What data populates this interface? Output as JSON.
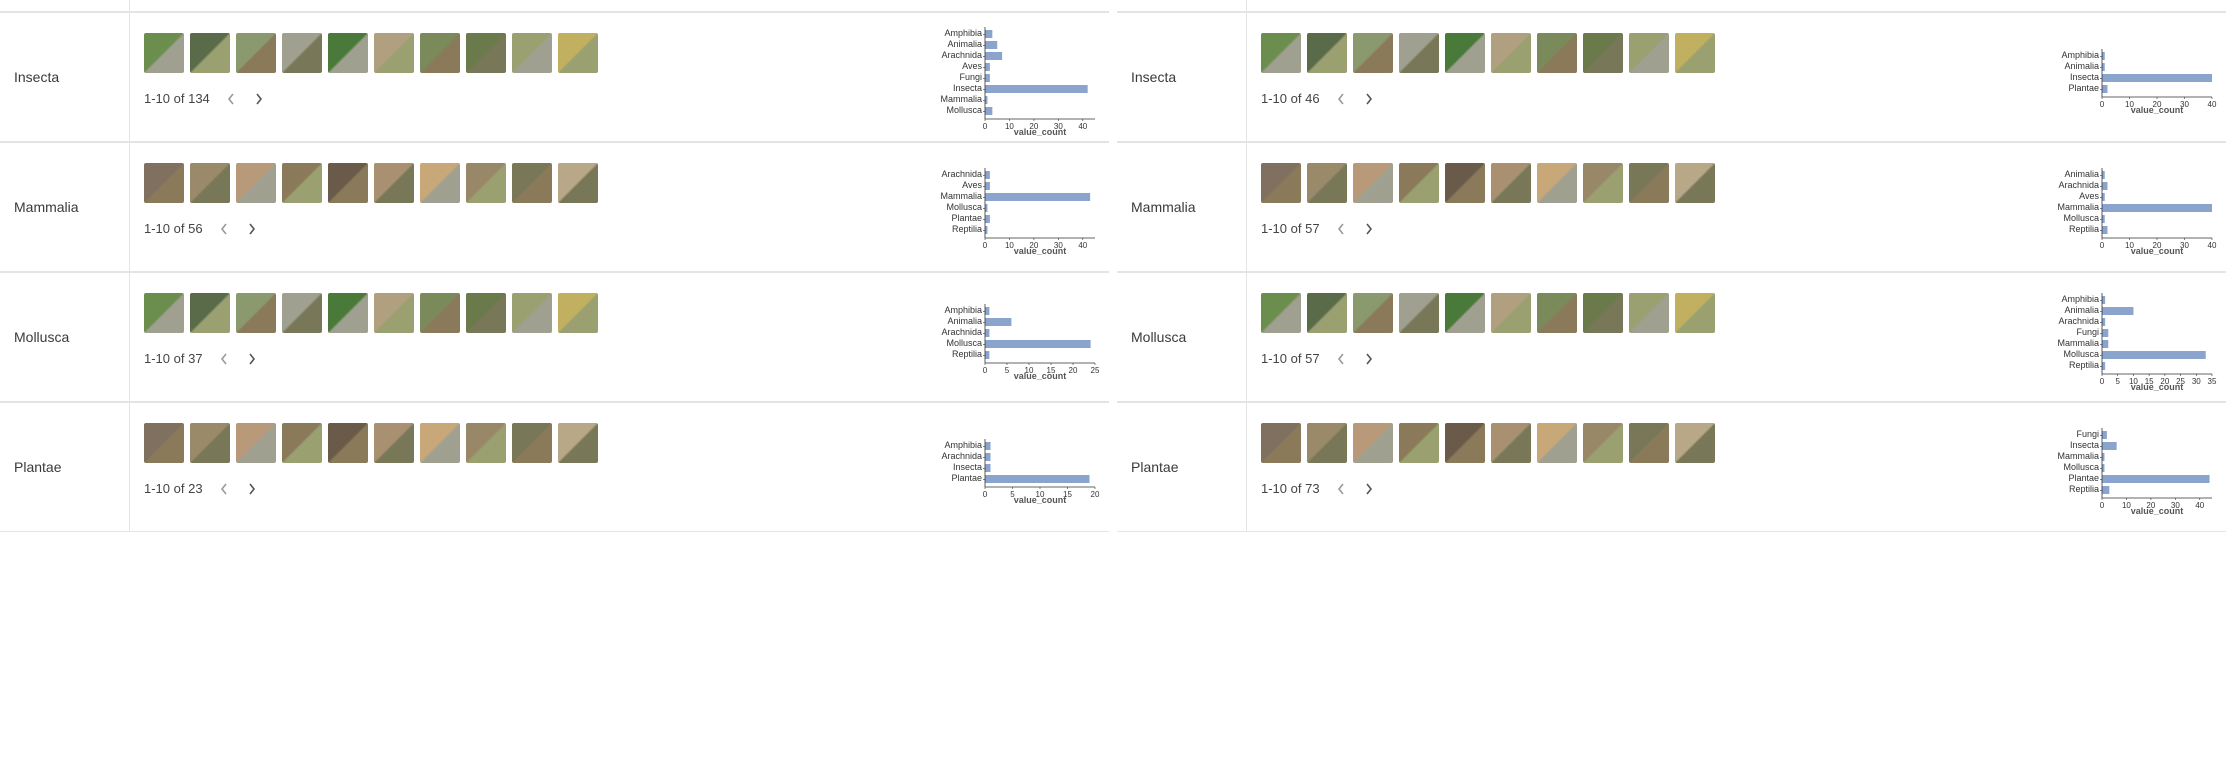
{
  "chart_style": {
    "bar_color": "#8aa4ce",
    "axis_color": "#333333",
    "axis_label": "value_count",
    "label_fontsize": 9,
    "tick_fontsize": 8,
    "background": "#ffffff"
  },
  "thumb_palette": [
    "#6b8e4e",
    "#5a6b4a",
    "#8a9a6e",
    "#a0a090",
    "#4a7a3a",
    "#b0a080",
    "#7a8a5a",
    "#6a7a4a",
    "#9aa070",
    "#c0b060",
    "#807060",
    "#9a8a6a",
    "#b89a7a",
    "#8a7a5a",
    "#6a5a4a",
    "#a89070",
    "#c8a878",
    "#988868",
    "#787858",
    "#b8a888"
  ],
  "columns": [
    {
      "rows": [
        {
          "label": "Insecta",
          "pager": "1-10 of 134",
          "total": 134,
          "thumbs": 10,
          "chart": {
            "xmax": 45,
            "xtick_step": 10,
            "bars": [
              {
                "cat": "Amphibia",
                "val": 3
              },
              {
                "cat": "Animalia",
                "val": 5
              },
              {
                "cat": "Arachnida",
                "val": 7
              },
              {
                "cat": "Aves",
                "val": 2
              },
              {
                "cat": "Fungi",
                "val": 2
              },
              {
                "cat": "Insecta",
                "val": 42
              },
              {
                "cat": "Mammalia",
                "val": 1
              },
              {
                "cat": "Mollusca",
                "val": 3
              }
            ]
          }
        },
        {
          "label": "Mammalia",
          "pager": "1-10 of 56",
          "total": 56,
          "thumbs": 10,
          "chart": {
            "xmax": 45,
            "xtick_step": 10,
            "bars": [
              {
                "cat": "Arachnida",
                "val": 2
              },
              {
                "cat": "Aves",
                "val": 2
              },
              {
                "cat": "Mammalia",
                "val": 43
              },
              {
                "cat": "Mollusca",
                "val": 1
              },
              {
                "cat": "Plantae",
                "val": 2
              },
              {
                "cat": "Reptilia",
                "val": 1
              }
            ]
          }
        },
        {
          "label": "Mollusca",
          "pager": "1-10 of 37",
          "total": 37,
          "thumbs": 10,
          "chart": {
            "xmax": 25,
            "xtick_step": 5,
            "bars": [
              {
                "cat": "Amphibia",
                "val": 1
              },
              {
                "cat": "Animalia",
                "val": 6
              },
              {
                "cat": "Arachnida",
                "val": 1
              },
              {
                "cat": "Mollusca",
                "val": 24
              },
              {
                "cat": "Reptilia",
                "val": 1
              }
            ]
          }
        },
        {
          "label": "Plantae",
          "pager": "1-10 of 23",
          "total": 23,
          "thumbs": 10,
          "chart": {
            "xmax": 20,
            "xtick_step": 5,
            "bars": [
              {
                "cat": "Amphibia",
                "val": 1
              },
              {
                "cat": "Arachnida",
                "val": 1
              },
              {
                "cat": "Insecta",
                "val": 1
              },
              {
                "cat": "Plantae",
                "val": 19
              }
            ]
          }
        }
      ]
    },
    {
      "rows": [
        {
          "label": "Insecta",
          "pager": "1-10 of 46",
          "total": 46,
          "thumbs": 10,
          "chart": {
            "xmax": 40,
            "xtick_step": 10,
            "bars": [
              {
                "cat": "Amphibia",
                "val": 1
              },
              {
                "cat": "Animalia",
                "val": 1
              },
              {
                "cat": "Insecta",
                "val": 40
              },
              {
                "cat": "Plantae",
                "val": 2
              }
            ]
          }
        },
        {
          "label": "Mammalia",
          "pager": "1-10 of 57",
          "total": 57,
          "thumbs": 10,
          "chart": {
            "xmax": 40,
            "xtick_step": 10,
            "bars": [
              {
                "cat": "Animalia",
                "val": 1
              },
              {
                "cat": "Arachnida",
                "val": 2
              },
              {
                "cat": "Aves",
                "val": 1
              },
              {
                "cat": "Mammalia",
                "val": 40
              },
              {
                "cat": "Mollusca",
                "val": 1
              },
              {
                "cat": "Reptilia",
                "val": 2
              }
            ]
          }
        },
        {
          "label": "Mollusca",
          "pager": "1-10 of 57",
          "total": 57,
          "thumbs": 10,
          "chart": {
            "xmax": 35,
            "xtick_step": 5,
            "bars": [
              {
                "cat": "Amphibia",
                "val": 1
              },
              {
                "cat": "Animalia",
                "val": 10
              },
              {
                "cat": "Arachnida",
                "val": 1
              },
              {
                "cat": "Fungi",
                "val": 2
              },
              {
                "cat": "Mammalia",
                "val": 2
              },
              {
                "cat": "Mollusca",
                "val": 33
              },
              {
                "cat": "Reptilia",
                "val": 1
              }
            ]
          }
        },
        {
          "label": "Plantae",
          "pager": "1-10 of 73",
          "total": 73,
          "thumbs": 10,
          "chart": {
            "xmax": 45,
            "xtick_step": 10,
            "bars": [
              {
                "cat": "Fungi",
                "val": 2
              },
              {
                "cat": "Insecta",
                "val": 6
              },
              {
                "cat": "Mammalia",
                "val": 1
              },
              {
                "cat": "Mollusca",
                "val": 1
              },
              {
                "cat": "Plantae",
                "val": 44
              },
              {
                "cat": "Reptilia",
                "val": 3
              }
            ]
          }
        }
      ]
    }
  ]
}
